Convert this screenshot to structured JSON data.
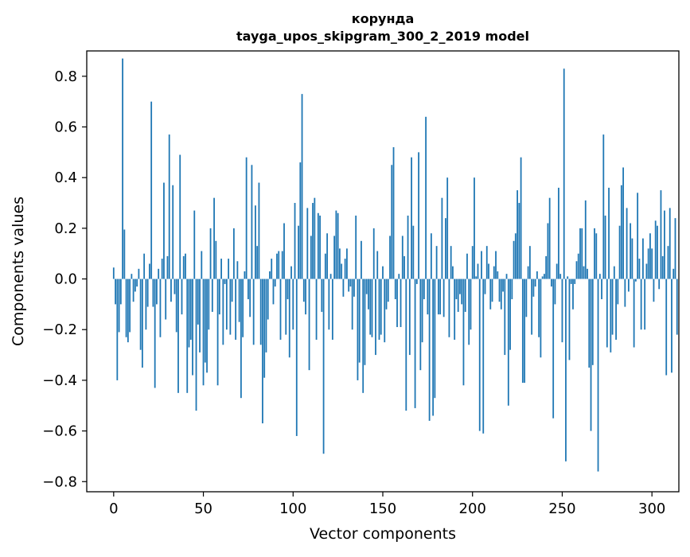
{
  "chart_data": {
    "type": "bar",
    "title": "корунда",
    "subtitle": "tayga_upos_skipgram_300_2_2019 model",
    "xlabel": "Vector components",
    "ylabel": "Components values",
    "xlim": [
      -15,
      315
    ],
    "ylim": [
      -0.84,
      0.9
    ],
    "xticks": [
      0,
      50,
      100,
      150,
      200,
      250,
      300
    ],
    "xtick_labels": [
      "0",
      "50",
      "100",
      "150",
      "200",
      "250",
      "300"
    ],
    "yticks": [
      0.8,
      0.6,
      0.4,
      0.2,
      0.0,
      -0.2,
      -0.4,
      -0.6,
      -0.8
    ],
    "ytick_labels": [
      "0.8",
      "0.6",
      "0.4",
      "0.2",
      "0.0",
      "−0.2",
      "−0.4",
      "−0.6",
      "−0.8"
    ],
    "bar_color": "#1f77b4",
    "grid": false,
    "x_start": 0,
    "values": [
      0.045,
      -0.1,
      -0.4,
      -0.21,
      -0.1,
      0.87,
      0.195,
      -0.23,
      -0.25,
      -0.21,
      0.02,
      -0.09,
      -0.05,
      -0.03,
      0.04,
      -0.28,
      -0.35,
      0.1,
      -0.2,
      -0.11,
      0.06,
      0.7,
      -0.11,
      -0.43,
      -0.1,
      0.04,
      -0.23,
      0.08,
      0.38,
      -0.16,
      0.09,
      0.57,
      -0.09,
      0.37,
      -0.06,
      -0.21,
      -0.45,
      0.49,
      -0.14,
      0.09,
      0.1,
      -0.45,
      -0.27,
      -0.24,
      -0.38,
      0.27,
      -0.52,
      -0.18,
      -0.29,
      0.11,
      -0.42,
      -0.33,
      -0.37,
      -0.2,
      0.2,
      -0.13,
      0.32,
      0.15,
      -0.42,
      -0.14,
      0.08,
      -0.26,
      -0.02,
      -0.2,
      0.08,
      -0.22,
      -0.09,
      0.2,
      -0.24,
      0.07,
      -0.17,
      -0.47,
      -0.23,
      0.03,
      0.48,
      -0.08,
      -0.15,
      0.45,
      -0.26,
      0.29,
      0.13,
      0.38,
      -0.26,
      -0.57,
      -0.39,
      -0.29,
      -0.16,
      0.03,
      0.08,
      -0.1,
      -0.03,
      0.1,
      0.11,
      -0.24,
      0.11,
      0.22,
      -0.22,
      -0.08,
      -0.31,
      0.05,
      -0.2,
      0.3,
      -0.62,
      0.21,
      0.46,
      0.73,
      -0.09,
      -0.14,
      0.28,
      -0.36,
      0.17,
      0.3,
      0.32,
      -0.24,
      0.26,
      0.25,
      -0.13,
      -0.69,
      0.1,
      0.18,
      -0.2,
      0.02,
      -0.24,
      0.17,
      0.27,
      0.26,
      0.12,
      0.06,
      -0.07,
      0.08,
      0.12,
      -0.05,
      -0.03,
      -0.2,
      -0.07,
      0.25,
      -0.4,
      -0.33,
      0.15,
      -0.45,
      -0.34,
      -0.06,
      -0.12,
      -0.22,
      -0.23,
      0.2,
      -0.3,
      0.11,
      -0.24,
      -0.22,
      0.05,
      -0.25,
      -0.12,
      -0.09,
      0.17,
      0.45,
      0.52,
      -0.08,
      -0.19,
      0.02,
      -0.19,
      0.17,
      0.09,
      -0.52,
      0.25,
      -0.3,
      0.48,
      0.21,
      -0.51,
      -0.02,
      0.5,
      -0.36,
      -0.25,
      -0.08,
      0.64,
      -0.14,
      -0.56,
      0.18,
      -0.54,
      -0.47,
      0.13,
      -0.14,
      -0.14,
      0.32,
      -0.15,
      0.24,
      0.4,
      -0.23,
      0.13,
      0.05,
      -0.24,
      -0.08,
      -0.13,
      -0.06,
      -0.1,
      -0.42,
      -0.13,
      0.1,
      -0.26,
      -0.2,
      0.13,
      0.4,
      0.01,
      0.06,
      -0.6,
      0.11,
      -0.61,
      -0.06,
      0.13,
      0.06,
      -0.12,
      -0.09,
      0.05,
      0.11,
      0.03,
      -0.09,
      -0.12,
      -0.05,
      -0.3,
      0.02,
      -0.5,
      -0.28,
      -0.08,
      0.15,
      0.18,
      0.35,
      0.3,
      0.48,
      -0.41,
      -0.41,
      -0.15,
      0.05,
      0.13,
      -0.22,
      -0.07,
      -0.03,
      0.03,
      -0.23,
      -0.31,
      0.01,
      0.02,
      0.09,
      0.22,
      0.32,
      -0.03,
      -0.55,
      -0.1,
      0.06,
      0.36,
      0.02,
      -0.25,
      0.83,
      -0.72,
      0.01,
      -0.32,
      -0.02,
      -0.12,
      -0.02,
      0.07,
      0.1,
      0.2,
      0.2,
      0.05,
      0.31,
      0.04,
      -0.35,
      -0.6,
      -0.34,
      0.2,
      0.18,
      -0.76,
      0.02,
      -0.08,
      0.57,
      0.25,
      -0.27,
      0.36,
      -0.29,
      -0.22,
      0.05,
      -0.24,
      -0.1,
      0.21,
      0.37,
      0.44,
      -0.11,
      0.28,
      -0.05,
      0.22,
      0.16,
      -0.27,
      -0.01,
      0.34,
      0.08,
      -0.2,
      0.16,
      -0.2,
      0.06,
      0.12,
      0.18,
      0.12,
      -0.09,
      0.23,
      0.21,
      -0.04,
      0.35,
      0.09,
      0.27,
      -0.38,
      0.13,
      0.28,
      -0.37,
      0.04,
      0.24,
      -0.22
    ]
  }
}
